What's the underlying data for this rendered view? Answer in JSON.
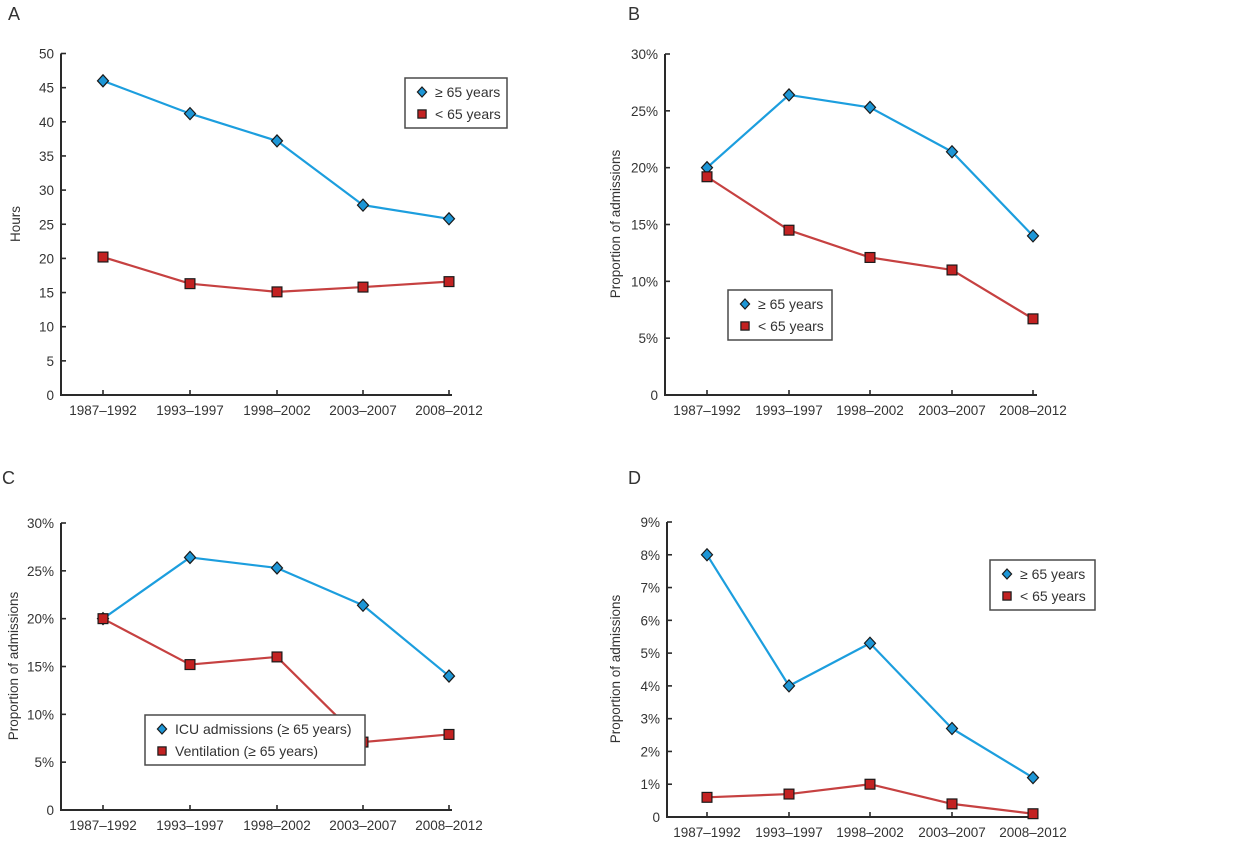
{
  "figure": {
    "description": "Four-panel line chart figure, panels A-D, ICU admission trends by age group across five time periods"
  },
  "colors": {
    "blue_line": "#1c9ede",
    "blue_marker_fill": "#1d96d6",
    "red_line": "#c64141",
    "red_marker_fill": "#c32222",
    "marker_stroke": "#1a1a1a",
    "axis": "#2a2a2a",
    "text": "#333333",
    "legend_border": "#4a4a4a",
    "legend_background": "#ffffff"
  },
  "chart_data": [
    {
      "panel": "A",
      "type": "line",
      "categories": [
        "1987–1992",
        "1993–1997",
        "1998–2002",
        "2003–2007",
        "2008–2012"
      ],
      "xlabel": "",
      "ylabel": "Hours",
      "ylim": [
        0,
        50
      ],
      "ytick_step": 5,
      "ytick_labels": [
        "0",
        "5",
        "10",
        "15",
        "20",
        "25",
        "30",
        "35",
        "40",
        "45",
        "50"
      ],
      "grid": false,
      "legend": {
        "position": "top-right",
        "entries": [
          "≥ 65 years",
          "< 65 years"
        ]
      },
      "series": [
        {
          "name": "≥ 65 years",
          "marker": "diamond",
          "color": "blue",
          "values": [
            46,
            41.2,
            37.2,
            27.8,
            25.8
          ]
        },
        {
          "name": "< 65 years",
          "marker": "square",
          "color": "red",
          "values": [
            20.2,
            16.3,
            15.1,
            15.8,
            16.6
          ]
        }
      ]
    },
    {
      "panel": "B",
      "type": "line",
      "categories": [
        "1987–1992",
        "1993–1997",
        "1998–2002",
        "2003–2007",
        "2008–2012"
      ],
      "xlabel": "",
      "ylabel": "Proportion of admissions",
      "ylim": [
        0,
        30
      ],
      "ytick_step": 5,
      "ytick_labels": [
        "0",
        "5%",
        "10%",
        "15%",
        "20%",
        "25%",
        "30%"
      ],
      "grid": false,
      "legend": {
        "position": "bottom-left",
        "entries": [
          "≥ 65 years",
          "< 65 years"
        ]
      },
      "series": [
        {
          "name": "≥ 65 years",
          "marker": "diamond",
          "color": "blue",
          "values": [
            20,
            26.4,
            25.3,
            21.4,
            14
          ]
        },
        {
          "name": "< 65 years",
          "marker": "square",
          "color": "red",
          "values": [
            19.2,
            14.5,
            12.1,
            11,
            6.7
          ]
        }
      ]
    },
    {
      "panel": "C",
      "type": "line",
      "categories": [
        "1987–1992",
        "1993–1997",
        "1998–2002",
        "2003–2007",
        "2008–2012"
      ],
      "xlabel": "",
      "ylabel": "Proportion of admissions",
      "ylim": [
        0,
        30
      ],
      "ytick_step": 5,
      "ytick_labels": [
        "0",
        "5%",
        "10%",
        "15%",
        "20%",
        "25%",
        "30%"
      ],
      "grid": false,
      "legend": {
        "position": "bottom-left",
        "entries": [
          "ICU admissions (≥ 65 years)",
          "Ventilation (≥ 65 years)"
        ]
      },
      "series": [
        {
          "name": "ICU admissions (≥ 65 years)",
          "marker": "diamond",
          "color": "blue",
          "values": [
            20,
            26.4,
            25.3,
            21.4,
            14
          ]
        },
        {
          "name": "Ventilation (≥ 65 years)",
          "marker": "square",
          "color": "red",
          "values": [
            20,
            15.2,
            16,
            7.1,
            7.9
          ]
        }
      ]
    },
    {
      "panel": "D",
      "type": "line",
      "categories": [
        "1987–1992",
        "1993–1997",
        "1998–2002",
        "2003–2007",
        "2008–2012"
      ],
      "xlabel": "",
      "ylabel": "Proportion of admissions",
      "ylim": [
        0,
        9
      ],
      "ytick_step": 1,
      "ytick_labels": [
        "0",
        "1%",
        "2%",
        "3%",
        "4%",
        "5%",
        "6%",
        "7%",
        "8%",
        "9%"
      ],
      "grid": false,
      "legend": {
        "position": "top-right",
        "entries": [
          "≥ 65 years",
          "< 65 years"
        ]
      },
      "series": [
        {
          "name": "≥ 65 years",
          "marker": "diamond",
          "color": "blue",
          "values": [
            8,
            4,
            5.3,
            2.7,
            1.2
          ]
        },
        {
          "name": "< 65 years",
          "marker": "square",
          "color": "red",
          "values": [
            0.6,
            0.7,
            1,
            0.4,
            0.1
          ]
        }
      ]
    }
  ]
}
